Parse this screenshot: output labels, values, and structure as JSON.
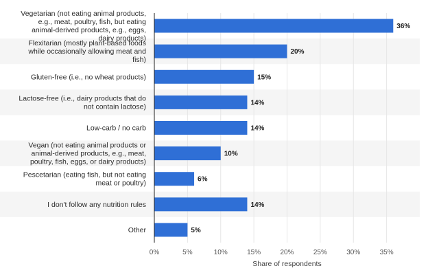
{
  "chart_data": {
    "type": "bar",
    "orientation": "horizontal",
    "categories": [
      "Vegetarian (not eating animal products, e.g., meat, poultry, fish, but eating animal-derived products, e.g., eggs, dairy products)",
      "Flexitarian (mostly plant-based foods while occasionally allowing meat and fish)",
      "Gluten-free (i.e., no wheat products)",
      "Lactose-free (i.e., dairy products that do not contain lactose)",
      "Low-carb / no carb",
      "Vegan (not eating animal products or animal-derived products, e.g., meat, poultry, fish, eggs, or dairy products)",
      "Pescetarian (eating fish, but not eating meat or poultry)",
      "I don't follow any nutrition rules",
      "Other"
    ],
    "category_lines": [
      [
        "Vegetarian (not eating animal products,",
        "e.g., meat, poultry, fish, but eating",
        "animal-derived products, e.g., eggs,",
        "dairy products)"
      ],
      [
        "Flexitarian (mostly plant-based foods",
        "while occasionally allowing meat and",
        "fish)"
      ],
      [
        "Gluten-free (i.e., no wheat products)"
      ],
      [
        "Lactose-free (i.e., dairy products that do",
        "not contain lactose)"
      ],
      [
        "Low-carb / no carb"
      ],
      [
        "Vegan (not eating animal products or",
        "animal-derived products, e.g., meat,",
        "poultry, fish, eggs, or dairy products)"
      ],
      [
        "Pescetarian (eating fish, but not eating",
        "meat or poultry)"
      ],
      [
        "I don't follow any nutrition rules"
      ],
      [
        "Other"
      ]
    ],
    "values": [
      36,
      20,
      15,
      14,
      14,
      10,
      6,
      14,
      5
    ],
    "value_labels": [
      "36%",
      "20%",
      "15%",
      "14%",
      "14%",
      "10%",
      "6%",
      "14%",
      "5%"
    ],
    "xlabel": "Share of respondents",
    "ylabel": "",
    "xlim": [
      0,
      40
    ],
    "ticks": [
      0,
      5,
      10,
      15,
      20,
      25,
      30,
      35
    ],
    "tick_labels": [
      "0%",
      "5%",
      "10%",
      "15%",
      "20%",
      "25%",
      "30%",
      "35%"
    ],
    "grid": true,
    "legend": "none",
    "colors": {
      "bar": "#2f6fd6",
      "band": "#f5f5f5",
      "grid": "#e6e6e6",
      "axis": "#222222"
    }
  }
}
